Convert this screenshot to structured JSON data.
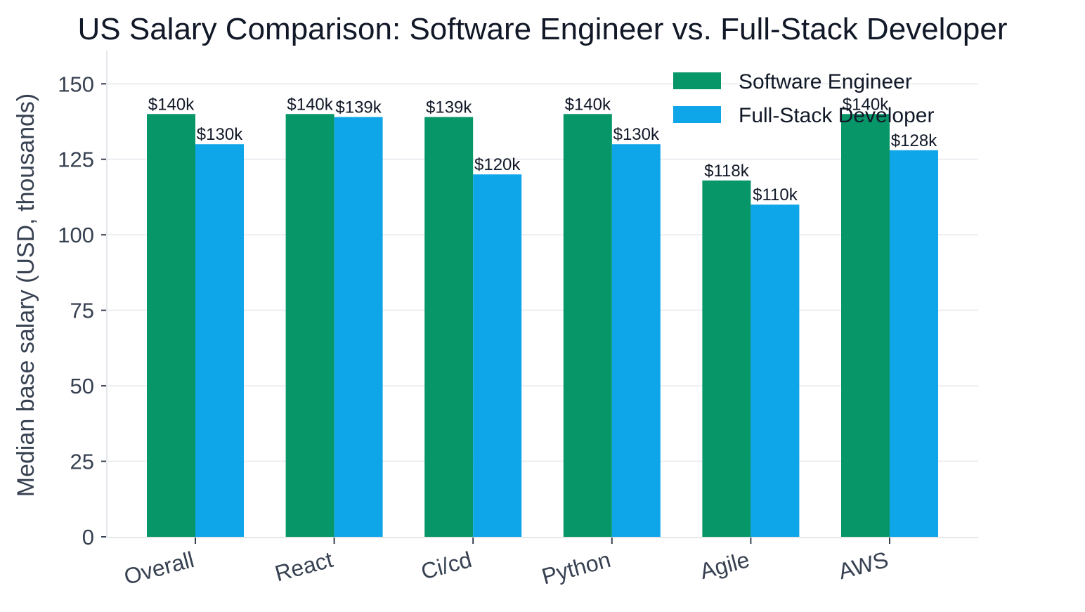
{
  "chart_data": {
    "type": "bar",
    "title": "US Salary Comparison: Software Engineer vs. Full-Stack Developer",
    "xlabel": "",
    "ylabel": "Median base salary (USD, thousands)",
    "categories": [
      "Overall",
      "React",
      "Ci/cd",
      "Python",
      "Agile",
      "AWS"
    ],
    "series": [
      {
        "name": "Software Engineer",
        "color": "#069668",
        "values": [
          140,
          140,
          139,
          140,
          118,
          140
        ],
        "labels": [
          "$140k",
          "$140k",
          "$139k",
          "$140k",
          "$118k",
          "$140k"
        ]
      },
      {
        "name": "Full-Stack Developer",
        "color": "#0ea5e9",
        "values": [
          130,
          139,
          120,
          130,
          110,
          128
        ],
        "labels": [
          "$130k",
          "$139k",
          "$120k",
          "$130k",
          "$110k",
          "$128k"
        ]
      }
    ],
    "ylim": [
      0,
      161
    ],
    "yticks": [
      0,
      25,
      50,
      75,
      100,
      125,
      150
    ],
    "grid": "horizontal",
    "legend": "top-right"
  }
}
